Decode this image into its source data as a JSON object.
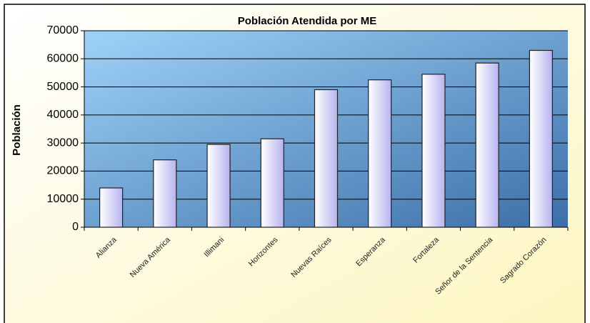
{
  "chart_data": {
    "type": "bar",
    "title": "Población Atendida por ME",
    "y_label": "Población",
    "categories": [
      "Alianza",
      "Nueva América",
      "Illimani",
      "Horizontes",
      "Nuevas Raíces",
      "Esperanza",
      "Fortaleza",
      "Señor de la Sentencia",
      "Sagrado Corazón"
    ],
    "values": [
      14000,
      24000,
      29500,
      31500,
      49000,
      52500,
      54500,
      58500,
      63000
    ],
    "color": "#c8c8f0",
    "ylim": [
      0,
      70000
    ],
    "yticks": [
      0,
      10000,
      20000,
      30000,
      40000,
      50000,
      60000,
      70000
    ],
    "grid": true
  }
}
